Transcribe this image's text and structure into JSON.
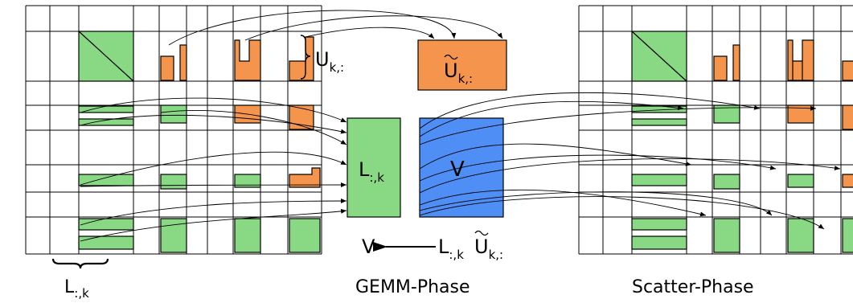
{
  "labels": {
    "u_k_row": "U",
    "u_k_row_sub": "k,:",
    "u_tilde": "U",
    "u_tilde_sub": "k,:",
    "l_block": "L",
    "l_block_sub": ":,k",
    "v_block": "V",
    "l_col": "L",
    "l_col_sub": ":,k",
    "eq_v": "V",
    "eq_l": "L",
    "eq_l_sub": ":,k",
    "eq_u": "U",
    "eq_u_sub": "k,:",
    "gemm_phase": "GEMM-Phase",
    "scatter_phase": "Scatter-Phase"
  },
  "colors": {
    "green": "#88d884",
    "orange": "#f5954d",
    "blue": "#4e8ef5",
    "line": "#000000"
  }
}
